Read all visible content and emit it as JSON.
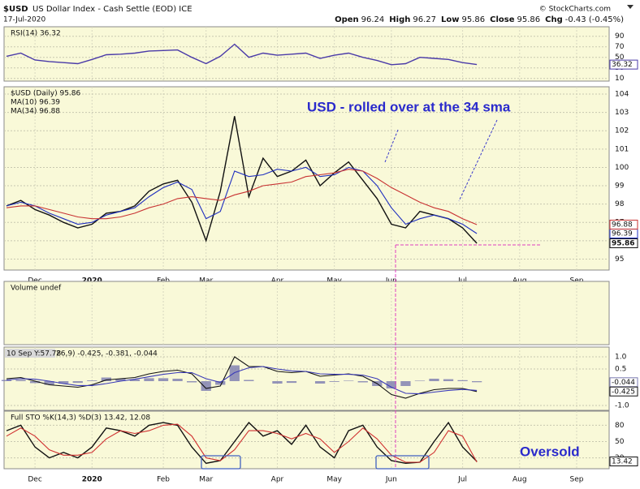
{
  "header": {
    "symbol": "$USD",
    "name": "US Dollar Index - Cash Settle (EOD) ICE",
    "date": "17-Jul-2020",
    "source": "© StockCharts.com",
    "quote": [
      {
        "label": "Open",
        "value": 96.24
      },
      {
        "label": "High",
        "value": 96.27
      },
      {
        "label": "Low",
        "value": 95.86
      },
      {
        "label": "Close",
        "value": 95.86
      },
      {
        "label": "Chg",
        "value": "-0.43 (-0.45%)"
      }
    ]
  },
  "chart_data": [
    {
      "type": "line",
      "title": "RSI(14) 36.32",
      "ylim": [
        5,
        108
      ],
      "yticks": [
        10,
        30,
        50,
        70,
        90
      ],
      "grid": true,
      "series": [
        {
          "color": "#4a3aa8",
          "tag": true,
          "values": [
            52,
            58,
            45,
            42,
            40,
            38,
            46,
            55,
            56,
            58,
            62,
            63,
            64,
            50,
            38,
            52,
            75,
            50,
            58,
            54,
            56,
            58,
            48,
            54,
            58,
            50,
            44,
            36,
            38,
            50,
            48,
            46,
            40,
            36.32,
            null,
            null,
            null,
            null,
            null,
            null,
            null,
            null
          ]
        }
      ]
    },
    {
      "type": "line",
      "ylim": [
        94.4,
        104.4
      ],
      "yticks": [
        95,
        96,
        97,
        98,
        99,
        100,
        101,
        102,
        103,
        104
      ],
      "grid": true,
      "annotation": "USD - rolled over at the 34 sma",
      "categories": [
        null,
        null,
        "Dec",
        null,
        null,
        null,
        "2020",
        null,
        null,
        null,
        null,
        "Feb",
        null,
        null,
        "Mar",
        null,
        null,
        null,
        null,
        "Apr",
        null,
        null,
        null,
        "May",
        null,
        null,
        null,
        "Jun",
        null,
        null,
        null,
        null,
        "Jul",
        null,
        null,
        null,
        "Aug",
        null,
        null,
        null,
        "Sep",
        null
      ],
      "series": [
        {
          "name": "$USD (Daily) 95.86",
          "color": "#111111",
          "tag": true,
          "values": [
            97.9,
            98.2,
            97.7,
            97.4,
            97.0,
            96.7,
            96.9,
            97.5,
            97.6,
            97.9,
            98.7,
            99.1,
            99.3,
            98.1,
            96.0,
            98.7,
            102.8,
            98.4,
            100.5,
            99.5,
            99.8,
            100.4,
            99.0,
            99.7,
            100.3,
            99.3,
            98.3,
            96.9,
            96.7,
            97.6,
            97.4,
            97.2,
            96.7,
            95.86,
            null,
            null,
            null,
            null,
            null,
            null,
            null,
            null
          ]
        },
        {
          "name": "MA(10) 96.39",
          "color": "#1f2fbf",
          "tag": true,
          "values": [
            97.9,
            98.1,
            97.9,
            97.5,
            97.2,
            96.9,
            97.0,
            97.4,
            97.6,
            97.8,
            98.4,
            98.9,
            99.2,
            98.8,
            97.2,
            97.6,
            99.8,
            99.5,
            99.6,
            99.9,
            99.8,
            100.0,
            99.5,
            99.6,
            100.0,
            99.8,
            99.0,
            97.8,
            96.9,
            97.2,
            97.4,
            97.2,
            96.9,
            96.39,
            null,
            null,
            null,
            null,
            null,
            null,
            null,
            null
          ]
        },
        {
          "name": "MA(34) 96.88",
          "color": "#c83232",
          "tag": true,
          "values": [
            97.8,
            97.9,
            97.9,
            97.7,
            97.5,
            97.3,
            97.2,
            97.2,
            97.3,
            97.5,
            97.8,
            98.0,
            98.3,
            98.4,
            98.3,
            98.2,
            98.5,
            98.7,
            99.0,
            99.1,
            99.2,
            99.5,
            99.6,
            99.7,
            99.9,
            99.8,
            99.4,
            98.9,
            98.5,
            98.1,
            97.8,
            97.6,
            97.2,
            96.88,
            null,
            null,
            null,
            null,
            null,
            null,
            null,
            null
          ]
        }
      ]
    },
    {
      "title": "Volume undef"
    },
    {
      "type": "line",
      "tooltip": "10 Sep Y:57.78",
      "title": "26,9) -0.425, -0.381, -0.044",
      "ylim": [
        -1.2,
        1.4
      ],
      "yticks": [
        {
          "value": 1,
          "label": "1.0"
        },
        0.5,
        {
          "value": -1,
          "label": "-1.0"
        }
      ],
      "grid": true,
      "series": [
        {
          "type": "bar",
          "color": "#7a7ab0",
          "tag": true,
          "values": [
            0.05,
            0.05,
            -0.08,
            -0.15,
            -0.1,
            -0.07,
            0.03,
            0.15,
            0.1,
            0.07,
            0.12,
            0.12,
            0.1,
            -0.05,
            -0.4,
            -0.15,
            0.65,
            0.05,
            0,
            -0.1,
            -0.07,
            0,
            -0.1,
            -0.03,
            0.02,
            -0.05,
            -0.2,
            -0.3,
            -0.2,
            0.02,
            0.1,
            0.08,
            0.04,
            -0.044,
            null,
            null,
            null,
            null,
            null,
            null,
            null,
            null
          ]
        },
        {
          "color": "#111111",
          "tag": true,
          "values": [
            0.1,
            0.15,
            0.0,
            -0.15,
            -0.2,
            -0.25,
            -0.15,
            0.05,
            0.1,
            0.15,
            0.3,
            0.4,
            0.45,
            0.3,
            -0.3,
            -0.2,
            1.0,
            0.6,
            0.6,
            0.4,
            0.35,
            0.4,
            0.2,
            0.25,
            0.3,
            0.2,
            -0.1,
            -0.55,
            -0.7,
            -0.5,
            -0.35,
            -0.3,
            -0.3,
            -0.425,
            null,
            null,
            null,
            null,
            null,
            null,
            null,
            null
          ]
        },
        {
          "color": "#3a3ab8",
          "values": [
            0.05,
            0.1,
            0.08,
            0.0,
            -0.1,
            -0.18,
            -0.18,
            -0.1,
            0.0,
            0.08,
            0.18,
            0.28,
            0.35,
            0.35,
            0.1,
            -0.05,
            0.35,
            0.55,
            0.6,
            0.5,
            0.42,
            0.4,
            0.3,
            0.28,
            0.28,
            0.25,
            0.1,
            -0.25,
            -0.5,
            -0.52,
            -0.45,
            -0.38,
            -0.34,
            -0.381,
            null,
            null,
            null,
            null,
            null,
            null,
            null,
            null
          ]
        }
      ]
    },
    {
      "type": "line",
      "title": "Full STO %K(14,3) %D(3) 13.42, 12.08",
      "ylim": [
        0,
        106
      ],
      "yticks": [
        20,
        50,
        80
      ],
      "grid": true,
      "annotation": "Oversold",
      "categories": [
        null,
        null,
        "Dec",
        null,
        null,
        null,
        "2020",
        null,
        null,
        null,
        null,
        "Feb",
        null,
        null,
        "Mar",
        null,
        null,
        null,
        null,
        "Apr",
        null,
        null,
        null,
        "May",
        null,
        null,
        null,
        "Jun",
        null,
        null,
        null,
        null,
        "Jul",
        null,
        null,
        null,
        "Aug",
        null,
        null,
        null,
        "Sep",
        null
      ],
      "series": [
        {
          "color": "#111111",
          "tag": true,
          "values": [
            70,
            80,
            40,
            20,
            30,
            20,
            40,
            75,
            70,
            60,
            80,
            85,
            80,
            40,
            10,
            15,
            50,
            85,
            60,
            70,
            45,
            80,
            40,
            20,
            70,
            80,
            40,
            15,
            10,
            12,
            50,
            85,
            40,
            13.42,
            null,
            null,
            null,
            null,
            null,
            null,
            null,
            null
          ]
        },
        {
          "color": "#d03030",
          "values": [
            60,
            75,
            60,
            35,
            25,
            25,
            30,
            55,
            70,
            65,
            70,
            80,
            82,
            60,
            20,
            15,
            35,
            70,
            70,
            65,
            55,
            65,
            55,
            30,
            50,
            75,
            55,
            25,
            12,
            12,
            30,
            70,
            60,
            12.08,
            null,
            null,
            null,
            null,
            null,
            null,
            null,
            null
          ]
        }
      ]
    }
  ]
}
